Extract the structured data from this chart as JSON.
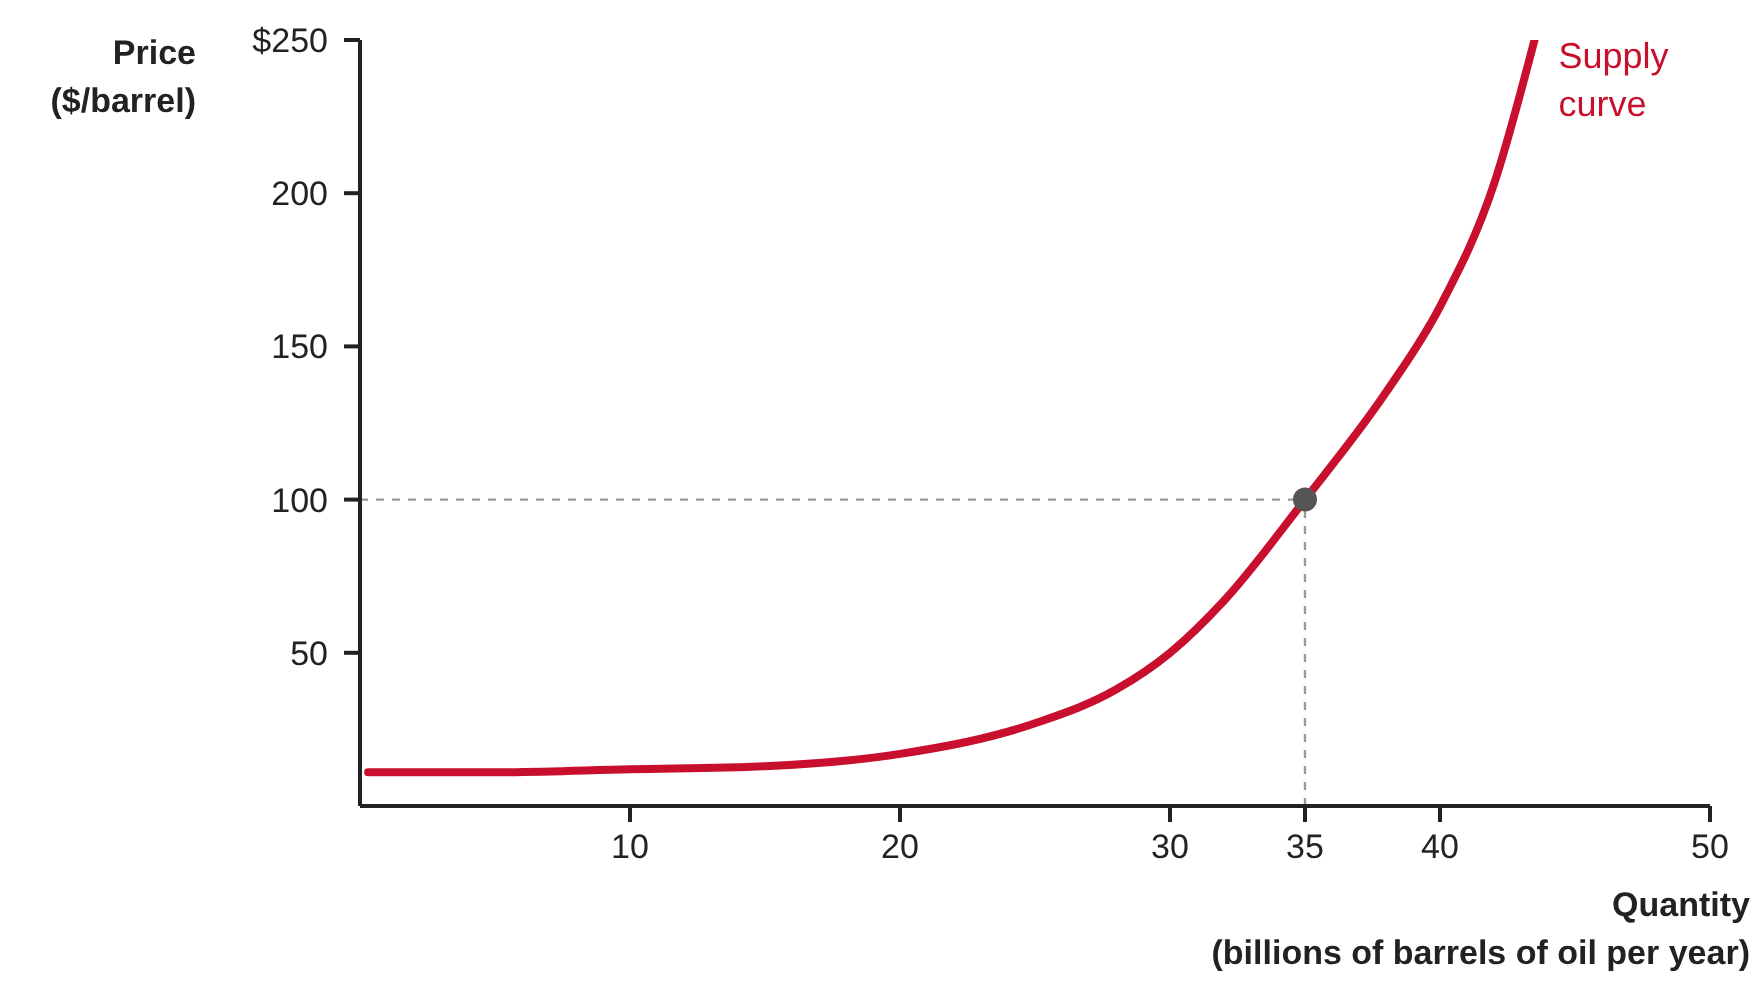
{
  "chart_data": {
    "type": "line",
    "xlabel": "Quantity (billions of barrels of oil per year)",
    "ylabel": "Price ($/barrel)",
    "xlim": [
      0,
      50
    ],
    "xticks": [
      10,
      20,
      30,
      35,
      40,
      50
    ],
    "ylim": [
      0,
      250
    ],
    "yticks": [
      50,
      100,
      150,
      200,
      {
        "value": 250,
        "label": "$250"
      }
    ],
    "grid": false,
    "legend": false,
    "marker": "none",
    "line_style": "solid",
    "series": [
      {
        "color": "#c8102e",
        "x": [
          0.3,
          5,
          10,
          15,
          20,
          25,
          28,
          30,
          32,
          35,
          38,
          40,
          42,
          43.5
        ],
        "values": [
          11,
          11,
          12,
          13,
          17,
          27,
          38,
          50,
          67,
          100,
          135,
          163,
          203,
          250
        ]
      },
      {
        "type": "scatter",
        "color": "#555555",
        "marker": "circle",
        "x": [
          35
        ],
        "values": [
          100
        ]
      }
    ],
    "ref_lines": [
      {
        "axis": "y",
        "value": 100,
        "color": "#999999",
        "line_style": "dashed"
      },
      {
        "axis": "x",
        "value": 35,
        "color": "#999999",
        "line_style": "dashed"
      }
    ],
    "annotations": [
      {
        "text": "Supply curve",
        "x": 43.5,
        "y": 250
      }
    ]
  }
}
